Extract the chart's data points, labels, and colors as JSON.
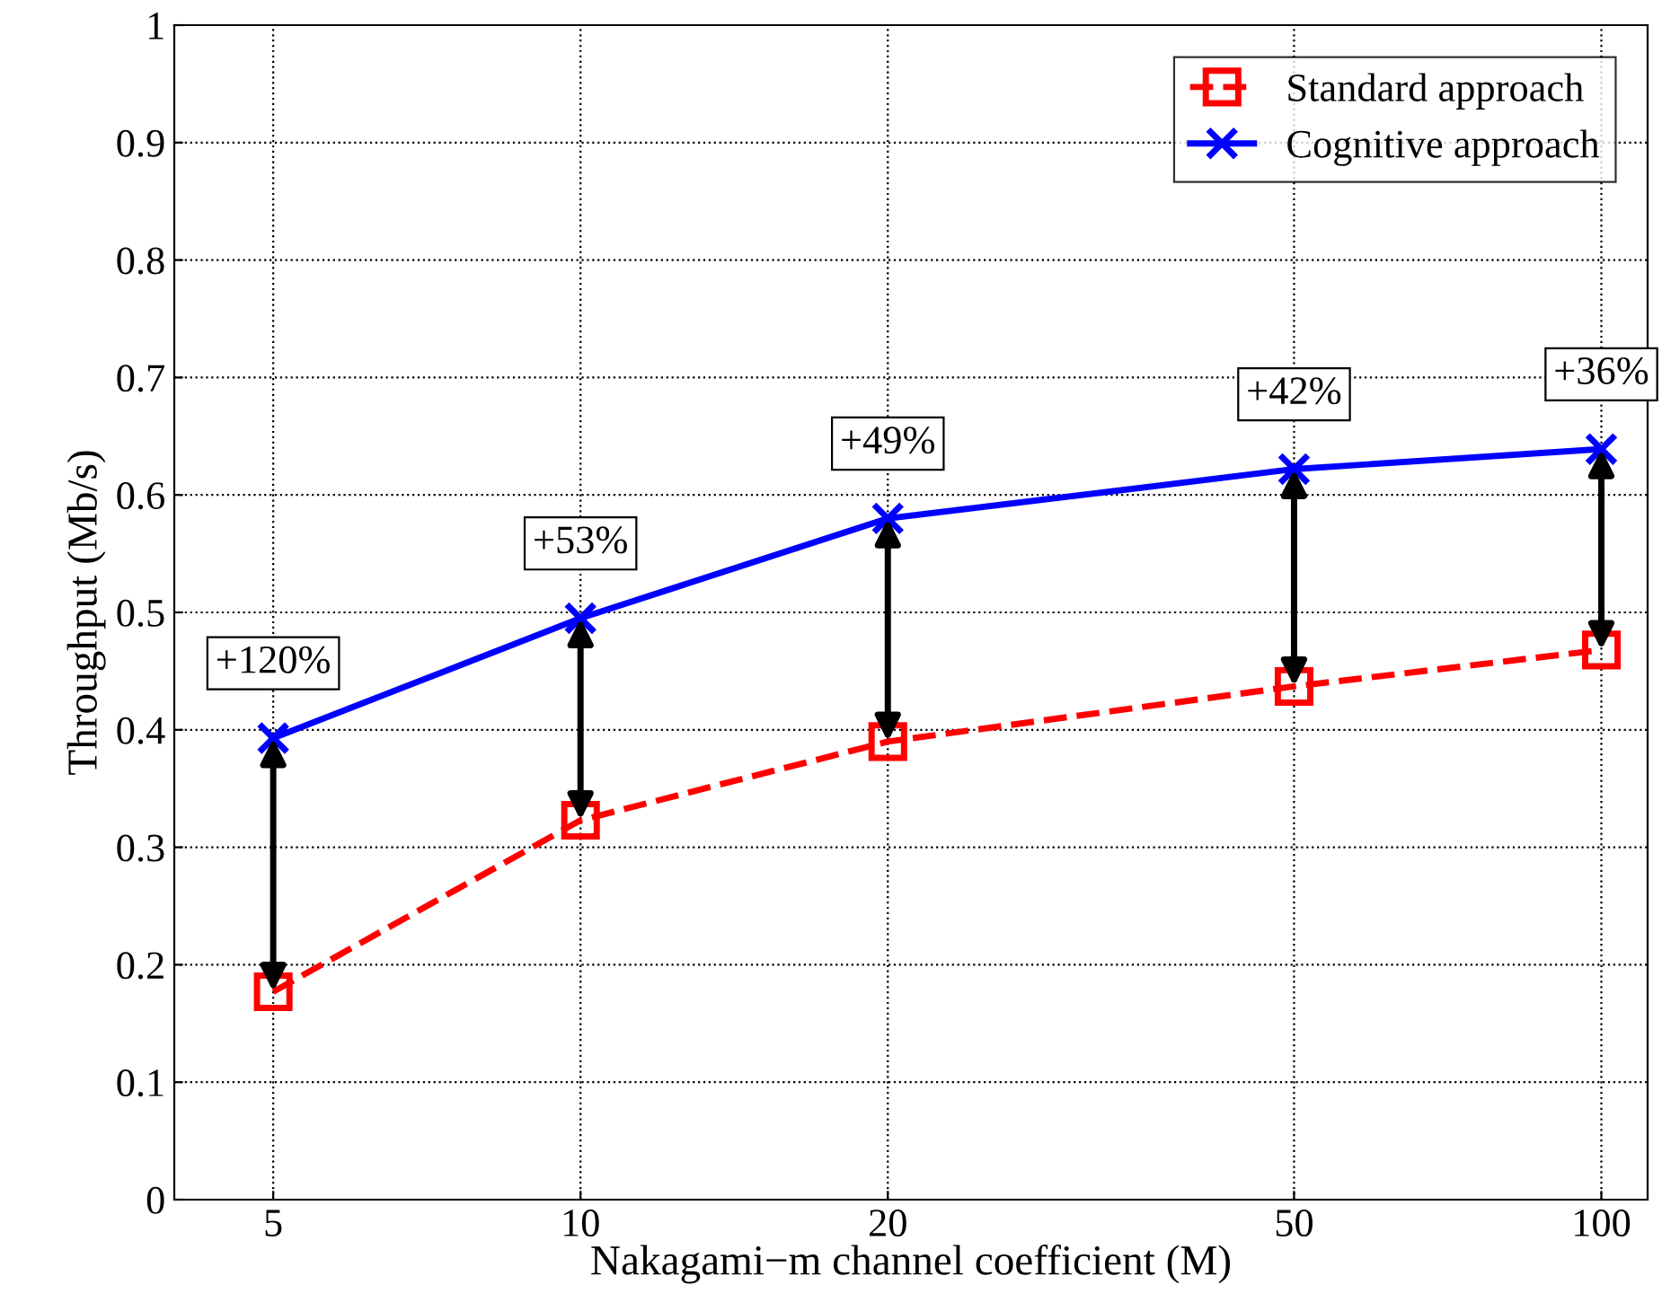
{
  "chart_data": {
    "type": "line",
    "xlabel": "Nakagami−m channel coefficient (M)",
    "ylabel": "Throughput (Mb/s)",
    "x": [
      5,
      10,
      20,
      50,
      100
    ],
    "log": "x",
    "xlim": [
      4,
      111
    ],
    "xticks": [
      5,
      10,
      20,
      50,
      100
    ],
    "ylim": [
      0,
      1
    ],
    "yticks": [
      0,
      0.1,
      0.2,
      0.3,
      0.4,
      0.5,
      0.6,
      0.7,
      0.8,
      0.9,
      1
    ],
    "grid": true,
    "legend": "top right",
    "series": [
      {
        "name": "Standard approach",
        "color": "#ff0000",
        "marker": "square",
        "line_style": "dashed",
        "values": [
          0.177,
          0.323,
          0.39,
          0.437,
          0.468
        ]
      },
      {
        "name": "Cognitive approach",
        "color": "#0000ff",
        "marker": "cross",
        "line_style": "solid",
        "values": [
          0.393,
          0.495,
          0.58,
          0.622,
          0.639
        ]
      }
    ],
    "annotations": [
      {
        "text": "+120%",
        "x": 5,
        "y": 0.393
      },
      {
        "text": "+53%",
        "x": 10,
        "y": 0.495
      },
      {
        "text": "+49%",
        "x": 20,
        "y": 0.58
      },
      {
        "text": "+42%",
        "x": 50,
        "y": 0.622
      },
      {
        "text": "+36%",
        "x": 100,
        "y": 0.639
      }
    ]
  }
}
